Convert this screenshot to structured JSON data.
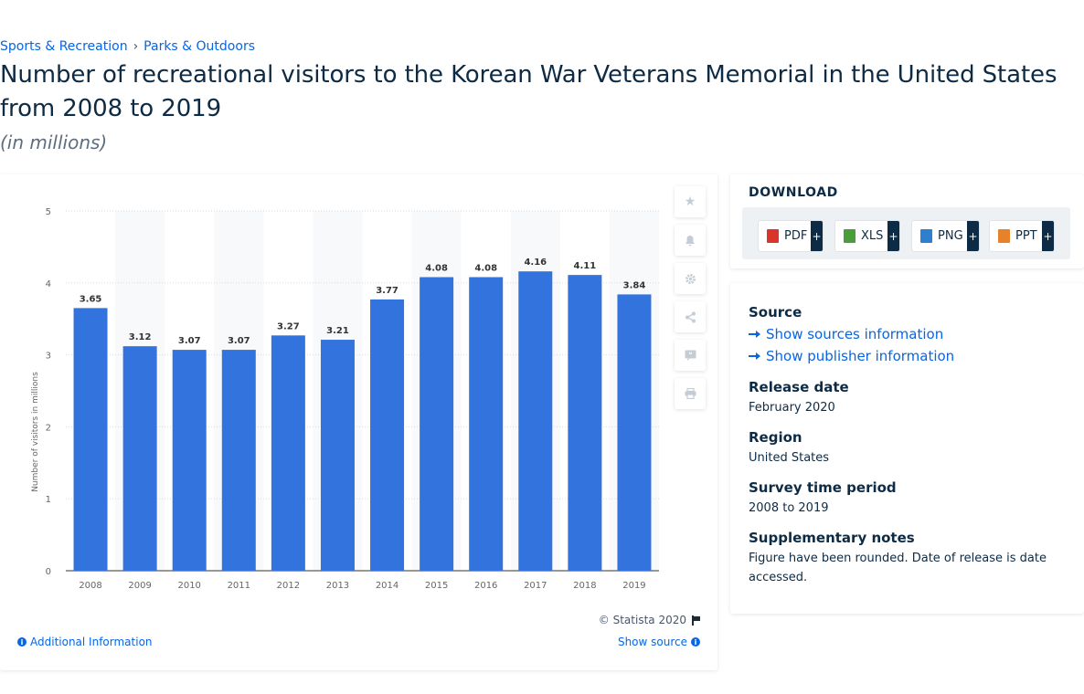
{
  "breadcrumb": {
    "items": [
      "Sports & Recreation",
      "Parks & Outdoors"
    ],
    "separator": "›"
  },
  "page": {
    "title": "Number of recreational visitors to the Korean War Veterans Memorial in the United States from 2008 to 2019",
    "subtitle": "(in millions)"
  },
  "chart_data": {
    "type": "bar",
    "categories": [
      "2008",
      "2009",
      "2010",
      "2011",
      "2012",
      "2013",
      "2014",
      "2015",
      "2016",
      "2017",
      "2018",
      "2019"
    ],
    "values": [
      3.65,
      3.12,
      3.07,
      3.07,
      3.27,
      3.21,
      3.77,
      4.08,
      4.08,
      4.16,
      4.11,
      3.84
    ],
    "ylabel": "Number of visitors in millions",
    "ylim": [
      0,
      5
    ],
    "yticks": [
      0,
      1,
      2,
      3,
      4,
      5
    ],
    "grid": true,
    "bar_color": "#3373dd",
    "data_labels": true
  },
  "chart_footer": {
    "copyright": "© Statista 2020",
    "additional_info": "Additional Information",
    "show_source": "Show source"
  },
  "toolbar": {
    "icons": [
      "star-icon",
      "bell-icon",
      "gear-icon",
      "share-icon",
      "quote-icon",
      "print-icon"
    ]
  },
  "download": {
    "title": "DOWNLOAD",
    "buttons": [
      {
        "label": "PDF",
        "plus": "+",
        "color": "#d9352b"
      },
      {
        "label": "XLS",
        "plus": "+",
        "color": "#4a9d3b"
      },
      {
        "label": "PNG",
        "plus": "+",
        "color": "#2f7fd0"
      },
      {
        "label": "PPT",
        "plus": "+",
        "color": "#e8822a"
      }
    ]
  },
  "details": {
    "source_label": "Source",
    "show_sources": "Show sources information",
    "show_publisher": "Show publisher information",
    "release_label": "Release date",
    "release_value": "February 2020",
    "region_label": "Region",
    "region_value": "United States",
    "survey_label": "Survey time period",
    "survey_value": "2008 to 2019",
    "notes_label": "Supplementary notes",
    "notes_value": "Figure have been rounded. Date of release is date accessed."
  }
}
